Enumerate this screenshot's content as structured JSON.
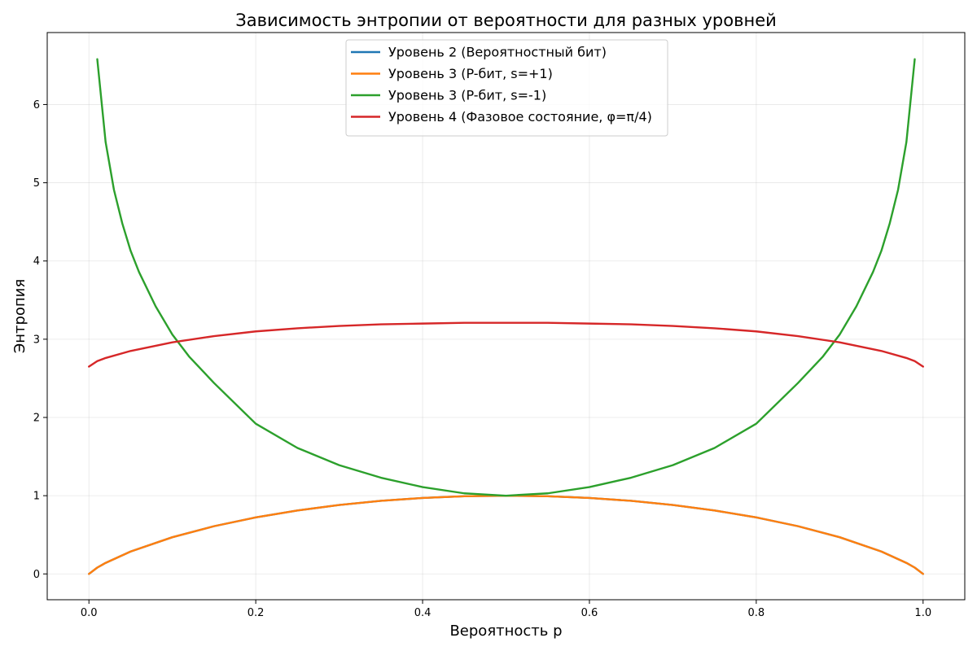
{
  "chart_data": {
    "type": "line",
    "title": "Зависимость энтропии от вероятности для разных уровней",
    "xlabel": "Вероятность p",
    "ylabel": "Энтропия",
    "xlim": [
      -0.05,
      1.05
    ],
    "ylim": [
      -0.33,
      6.92
    ],
    "x_ticks": [
      0.0,
      0.2,
      0.4,
      0.6,
      0.8,
      1.0
    ],
    "x_tick_labels": [
      "0.0",
      "0.2",
      "0.4",
      "0.6",
      "0.8",
      "1.0"
    ],
    "y_ticks": [
      0,
      1,
      2,
      3,
      4,
      5,
      6
    ],
    "y_tick_labels": [
      "0",
      "1",
      "2",
      "3",
      "4",
      "5",
      "6"
    ],
    "grid": true,
    "legend_position": "top-center",
    "series": [
      {
        "name": "Уровень 2 (Вероятностный бит)",
        "color": "#1f77b4",
        "x": [
          0.0,
          0.01,
          0.02,
          0.05,
          0.1,
          0.15,
          0.2,
          0.25,
          0.3,
          0.35,
          0.4,
          0.45,
          0.5,
          0.55,
          0.6,
          0.65,
          0.7,
          0.75,
          0.8,
          0.85,
          0.9,
          0.95,
          0.98,
          0.99,
          1.0
        ],
        "y": [
          0.0,
          0.081,
          0.141,
          0.286,
          0.469,
          0.61,
          0.722,
          0.811,
          0.881,
          0.934,
          0.971,
          0.993,
          1.0,
          0.993,
          0.971,
          0.934,
          0.881,
          0.811,
          0.722,
          0.61,
          0.469,
          0.286,
          0.141,
          0.081,
          0.0
        ]
      },
      {
        "name": "Уровень 3 (P-бит, s=+1)",
        "color": "#ff7f0e",
        "x": [
          0.0,
          0.01,
          0.02,
          0.05,
          0.1,
          0.15,
          0.2,
          0.25,
          0.3,
          0.35,
          0.4,
          0.45,
          0.5,
          0.55,
          0.6,
          0.65,
          0.7,
          0.75,
          0.8,
          0.85,
          0.9,
          0.95,
          0.98,
          0.99,
          1.0
        ],
        "y": [
          0.0,
          0.081,
          0.141,
          0.286,
          0.469,
          0.61,
          0.722,
          0.811,
          0.881,
          0.934,
          0.971,
          0.993,
          1.0,
          0.993,
          0.971,
          0.934,
          0.881,
          0.811,
          0.722,
          0.61,
          0.469,
          0.286,
          0.141,
          0.081,
          0.0
        ]
      },
      {
        "name": "Уровень 3 (P-бит, s=-1)",
        "color": "#2ca02c",
        "x": [
          0.01,
          0.02,
          0.03,
          0.04,
          0.05,
          0.06,
          0.08,
          0.1,
          0.12,
          0.15,
          0.2,
          0.25,
          0.3,
          0.35,
          0.4,
          0.45,
          0.5,
          0.55,
          0.6,
          0.65,
          0.7,
          0.75,
          0.8,
          0.85,
          0.88,
          0.9,
          0.92,
          0.94,
          0.95,
          0.96,
          0.97,
          0.98,
          0.99
        ],
        "y": [
          6.58,
          5.52,
          4.91,
          4.48,
          4.13,
          3.86,
          3.42,
          3.06,
          2.78,
          2.44,
          1.92,
          1.61,
          1.39,
          1.23,
          1.11,
          1.03,
          1.0,
          1.03,
          1.11,
          1.23,
          1.39,
          1.61,
          1.92,
          2.44,
          2.78,
          3.06,
          3.42,
          3.86,
          4.13,
          4.48,
          4.91,
          5.52,
          6.58
        ]
      },
      {
        "name": "Уровень 4 (Фазовое состояние, φ=π/4)",
        "color": "#d62728",
        "x": [
          0.0,
          0.01,
          0.02,
          0.05,
          0.1,
          0.15,
          0.2,
          0.25,
          0.3,
          0.35,
          0.4,
          0.45,
          0.5,
          0.55,
          0.6,
          0.65,
          0.7,
          0.75,
          0.8,
          0.85,
          0.9,
          0.95,
          0.98,
          0.99,
          1.0
        ],
        "y": [
          2.65,
          2.72,
          2.76,
          2.85,
          2.96,
          3.04,
          3.1,
          3.14,
          3.17,
          3.19,
          3.2,
          3.21,
          3.21,
          3.21,
          3.2,
          3.19,
          3.17,
          3.14,
          3.1,
          3.04,
          2.96,
          2.85,
          2.76,
          2.72,
          2.65
        ]
      }
    ]
  }
}
